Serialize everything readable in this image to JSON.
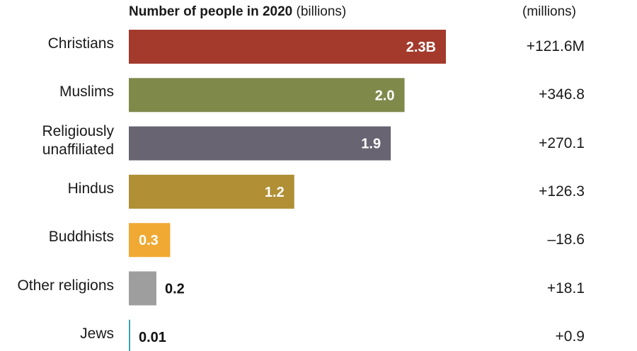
{
  "chart_data": {
    "type": "bar",
    "orientation": "horizontal",
    "title": "Number of people in 2020",
    "title_unit": "(billions)",
    "change_column_header": "(millions)",
    "categories": [
      "Christians",
      "Muslims",
      "Religiously unaffiliated",
      "Hindus",
      "Buddhists",
      "Other religions",
      "Jews"
    ],
    "category_lines": [
      [
        "Christians"
      ],
      [
        "Muslims"
      ],
      [
        "Religiously",
        "unaffiliated"
      ],
      [
        "Hindus"
      ],
      [
        "Buddhists"
      ],
      [
        "Other religions"
      ],
      [
        "Jews"
      ]
    ],
    "values": [
      2.3,
      2.0,
      1.9,
      1.2,
      0.3,
      0.2,
      0.01
    ],
    "value_labels": [
      "2.3B",
      "2.0",
      "1.9",
      "1.2",
      "0.3",
      "0.2",
      "0.01"
    ],
    "label_inside": [
      true,
      true,
      true,
      true,
      true,
      false,
      false
    ],
    "changes": [
      "+121.6M",
      "+346.8",
      "+270.1",
      "+126.3",
      "–18.6",
      "+18.1",
      "+0.9"
    ],
    "colors": [
      "#a33a2c",
      "#7f894a",
      "#686472",
      "#b08f35",
      "#f0a932",
      "#9e9e9e",
      "#3aa3b3"
    ],
    "xlim": [
      0,
      2.3
    ],
    "legend": "none",
    "grid": false
  }
}
